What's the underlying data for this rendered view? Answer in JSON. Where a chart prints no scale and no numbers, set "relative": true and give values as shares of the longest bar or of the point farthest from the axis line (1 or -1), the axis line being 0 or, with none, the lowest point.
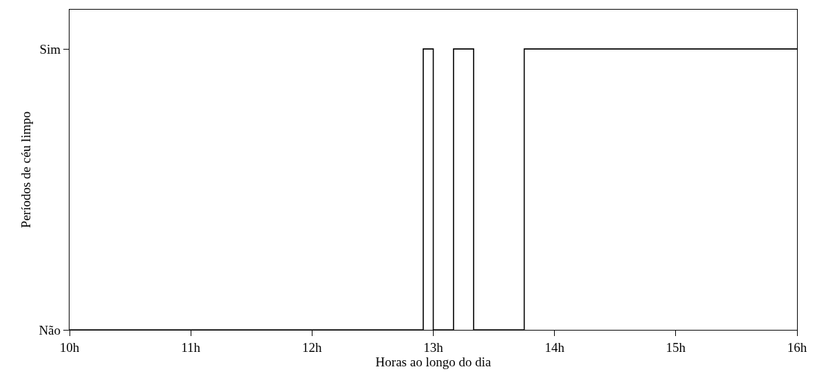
{
  "chart_data": {
    "type": "step",
    "relative": true,
    "xlabel": "Horas ao longo do dia",
    "ylabel": "Períodos de céu limpo",
    "x": [
      10,
      12.917,
      13,
      13.167,
      13.333,
      13.75,
      16
    ],
    "y_categories": [
      "Sim",
      "Não"
    ],
    "series": [
      {
        "color": "#000000",
        "values": [
          0,
          1,
          0,
          1,
          0,
          1,
          1
        ]
      }
    ],
    "xlim": [
      10,
      16
    ],
    "xticks": [
      {
        "value": 10,
        "label": "10h"
      },
      {
        "value": 11,
        "label": "11h"
      },
      {
        "value": 12,
        "label": "12h"
      },
      {
        "value": 13,
        "label": "13h"
      },
      {
        "value": 14,
        "label": "14h"
      },
      {
        "value": 15,
        "label": "15h"
      },
      {
        "value": 16,
        "label": "16h"
      }
    ],
    "marker": "none",
    "line_style": "solid"
  }
}
